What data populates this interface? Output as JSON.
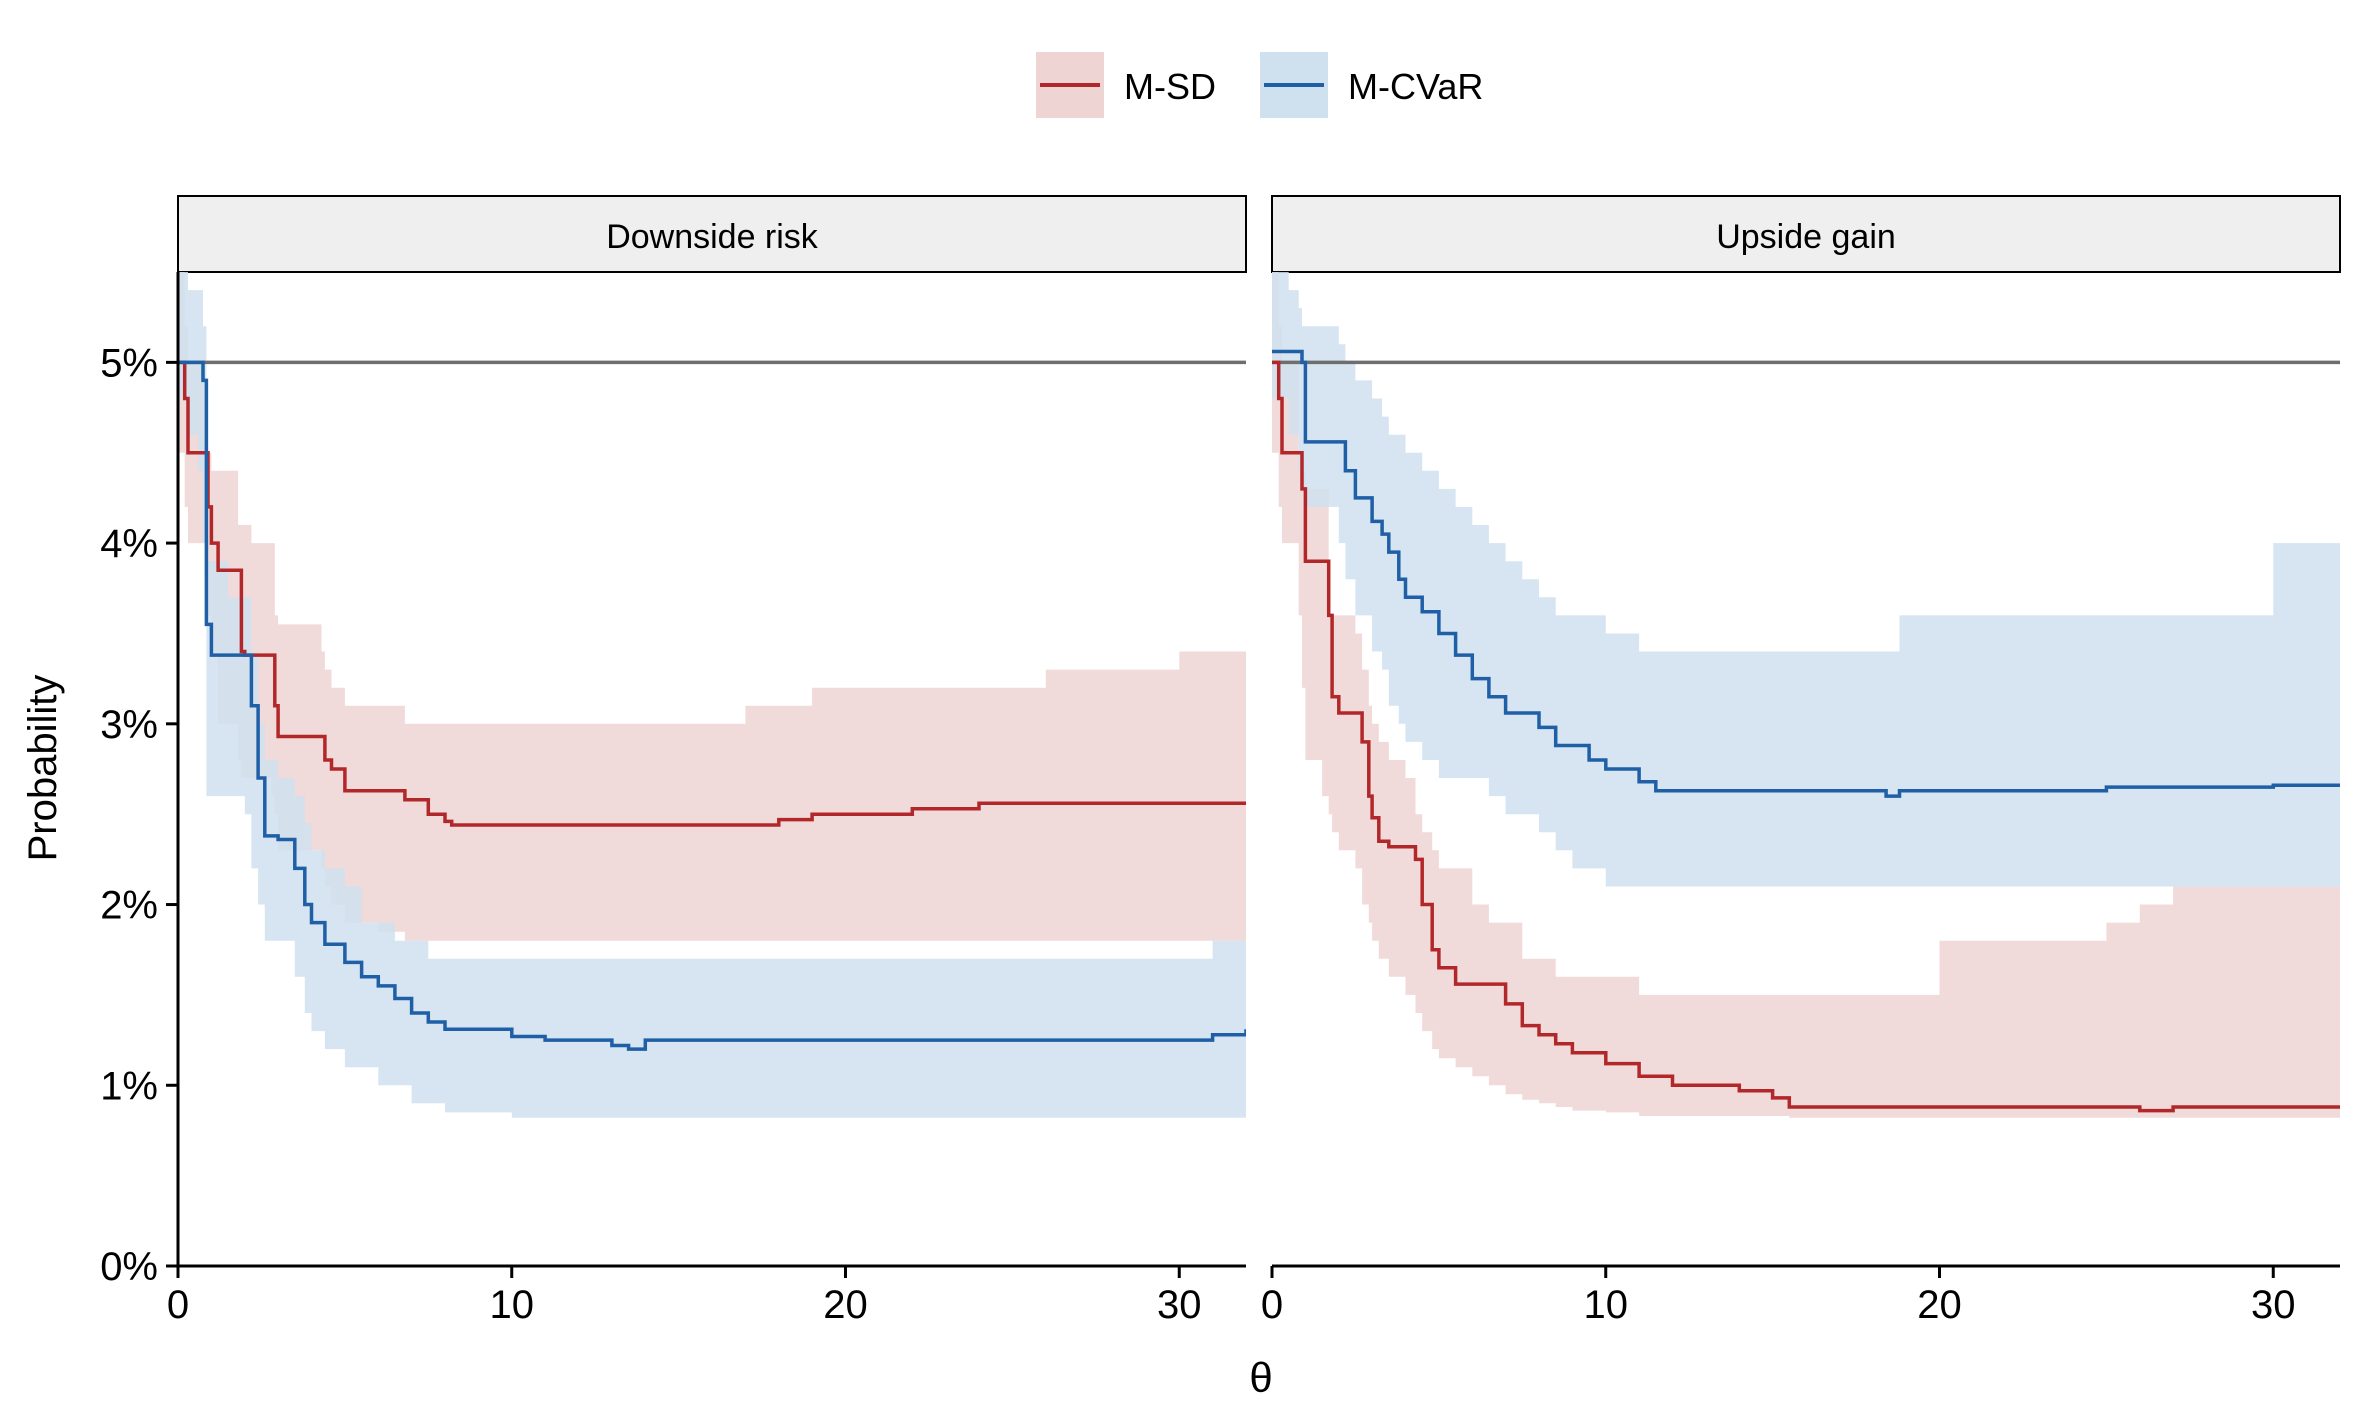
{
  "chart_data": {
    "type": "line",
    "xlabel": "θ",
    "ylabel": "Probability",
    "xlim": [
      0,
      32
    ],
    "ylim": [
      0,
      0.055
    ],
    "x_ticks": [
      0,
      10,
      20,
      30
    ],
    "x_tick_labels": [
      "0",
      "10",
      "20",
      "30"
    ],
    "y_ticks": [
      0,
      0.01,
      0.02,
      0.03,
      0.04,
      0.05
    ],
    "y_tick_labels": [
      "0%",
      "1%",
      "2%",
      "3%",
      "4%",
      "5%"
    ],
    "reference_line": {
      "y": 0.05,
      "color": "#6e6e6e"
    },
    "legend": {
      "position": "top",
      "items": [
        {
          "label": "M-SD",
          "color": "#b2282a",
          "fill": "#efd4d4"
        },
        {
          "label": "M-CVaR",
          "color": "#1f5fa6",
          "fill": "#cfe0ee"
        }
      ]
    },
    "panels": [
      {
        "title": "Downside risk",
        "series": [
          {
            "name": "M-SD",
            "color": "#b2282a",
            "fill": "#efd4d4",
            "x": [
              0,
              0.2,
              0.3,
              0.8,
              0.9,
              1.0,
              1.2,
              1.8,
              1.9,
              2.0,
              2.2,
              2.8,
              2.9,
              3.0,
              3.5,
              4.3,
              4.4,
              4.6,
              5.0,
              5.5,
              6.0,
              6.8,
              7.5,
              8.0,
              8.2,
              8.4,
              10,
              15,
              17,
              18,
              19,
              20,
              21,
              22,
              24,
              26,
              28,
              30,
              32
            ],
            "y": [
              0.05,
              0.048,
              0.045,
              0.045,
              0.042,
              0.04,
              0.0385,
              0.0385,
              0.034,
              0.0338,
              0.0338,
              0.0338,
              0.031,
              0.0293,
              0.0293,
              0.0293,
              0.028,
              0.0275,
              0.0263,
              0.0263,
              0.0263,
              0.0258,
              0.025,
              0.0246,
              0.0244,
              0.0244,
              0.0244,
              0.0244,
              0.0244,
              0.0247,
              0.025,
              0.025,
              0.025,
              0.0253,
              0.0256,
              0.0256,
              0.0256,
              0.0256,
              0.0256
            ],
            "lower": [
              0.045,
              0.042,
              0.04,
              0.038,
              0.036,
              0.034,
              0.03,
              0.028,
              0.027,
              0.027,
              0.027,
              0.026,
              0.025,
              0.023,
              0.023,
              0.022,
              0.021,
              0.02,
              0.019,
              0.019,
              0.0185,
              0.018,
              0.018,
              0.018,
              0.018,
              0.018,
              0.018,
              0.018,
              0.018,
              0.018,
              0.018,
              0.018,
              0.018,
              0.018,
              0.018,
              0.018,
              0.018,
              0.018,
              0.018
            ],
            "upper": [
              0.055,
              0.052,
              0.05,
              0.045,
              0.045,
              0.044,
              0.044,
              0.041,
              0.041,
              0.041,
              0.04,
              0.04,
              0.036,
              0.0355,
              0.0355,
              0.034,
              0.033,
              0.032,
              0.031,
              0.031,
              0.031,
              0.03,
              0.03,
              0.03,
              0.03,
              0.03,
              0.03,
              0.03,
              0.031,
              0.031,
              0.032,
              0.032,
              0.032,
              0.032,
              0.032,
              0.033,
              0.033,
              0.034,
              0.034
            ]
          },
          {
            "name": "M-CVaR",
            "color": "#1f5fa6",
            "fill": "#cfe0ee",
            "x": [
              0,
              0.3,
              0.6,
              0.75,
              0.85,
              1.0,
              1.5,
              2.0,
              2.2,
              2.4,
              2.6,
              3.0,
              3.5,
              3.8,
              4.0,
              4.4,
              5.0,
              5.5,
              6.0,
              6.5,
              7.0,
              7.5,
              8.0,
              9.0,
              10,
              11,
              12,
              13,
              13.5,
              14,
              15,
              20,
              25,
              30,
              31,
              32
            ],
            "y": [
              0.05,
              0.05,
              0.05,
              0.049,
              0.0355,
              0.0338,
              0.0338,
              0.0338,
              0.031,
              0.027,
              0.0238,
              0.0236,
              0.022,
              0.02,
              0.019,
              0.0178,
              0.0168,
              0.016,
              0.0155,
              0.0148,
              0.014,
              0.0135,
              0.0131,
              0.0131,
              0.0127,
              0.0125,
              0.0125,
              0.0122,
              0.012,
              0.0125,
              0.0125,
              0.0125,
              0.0125,
              0.0125,
              0.0128,
              0.0131
            ],
            "lower": [
              0.048,
              0.046,
              0.044,
              0.04,
              0.026,
              0.026,
              0.026,
              0.025,
              0.022,
              0.02,
              0.018,
              0.018,
              0.016,
              0.014,
              0.013,
              0.012,
              0.011,
              0.011,
              0.01,
              0.01,
              0.009,
              0.009,
              0.0085,
              0.0085,
              0.0082,
              0.0082,
              0.0082,
              0.0082,
              0.0082,
              0.0082,
              0.0082,
              0.0082,
              0.0082,
              0.0082,
              0.0082,
              0.0082
            ],
            "upper": [
              0.055,
              0.054,
              0.054,
              0.052,
              0.039,
              0.039,
              0.037,
              0.037,
              0.034,
              0.03,
              0.028,
              0.027,
              0.026,
              0.0245,
              0.023,
              0.022,
              0.021,
              0.019,
              0.019,
              0.018,
              0.018,
              0.017,
              0.017,
              0.017,
              0.017,
              0.017,
              0.017,
              0.017,
              0.017,
              0.017,
              0.017,
              0.017,
              0.017,
              0.017,
              0.018,
              0.018
            ]
          }
        ]
      },
      {
        "title": "Upside gain",
        "series": [
          {
            "name": "M-SD",
            "color": "#b2282a",
            "fill": "#efd4d4",
            "x": [
              0,
              0.2,
              0.3,
              0.8,
              0.9,
              1.0,
              1.5,
              1.7,
              1.8,
              2.0,
              2.5,
              2.7,
              2.9,
              3.0,
              3.2,
              3.5,
              4.0,
              4.3,
              4.5,
              4.8,
              5.0,
              5.5,
              6.0,
              6.5,
              7.0,
              7.5,
              8.0,
              8.5,
              9.0,
              10,
              11,
              12,
              13,
              14,
              15,
              15.5,
              20,
              25,
              26,
              27,
              32
            ],
            "y": [
              0.05,
              0.048,
              0.045,
              0.045,
              0.043,
              0.039,
              0.039,
              0.036,
              0.0315,
              0.0306,
              0.0306,
              0.029,
              0.026,
              0.0248,
              0.0235,
              0.0232,
              0.0232,
              0.0225,
              0.02,
              0.0175,
              0.0165,
              0.0156,
              0.0156,
              0.0156,
              0.0145,
              0.0133,
              0.0128,
              0.0123,
              0.0118,
              0.0112,
              0.0105,
              0.01,
              0.01,
              0.0097,
              0.0093,
              0.0088,
              0.0088,
              0.0088,
              0.0086,
              0.0088,
              0.0088
            ],
            "lower": [
              0.045,
              0.042,
              0.04,
              0.036,
              0.032,
              0.028,
              0.026,
              0.025,
              0.024,
              0.023,
              0.022,
              0.02,
              0.019,
              0.018,
              0.017,
              0.016,
              0.015,
              0.014,
              0.013,
              0.012,
              0.0115,
              0.011,
              0.0105,
              0.01,
              0.0095,
              0.0092,
              0.009,
              0.0088,
              0.0086,
              0.0085,
              0.0083,
              0.0083,
              0.0083,
              0.0083,
              0.0083,
              0.0082,
              0.0082,
              0.0082,
              0.0082,
              0.0082,
              0.0082
            ],
            "upper": [
              0.055,
              0.052,
              0.05,
              0.045,
              0.044,
              0.043,
              0.043,
              0.036,
              0.036,
              0.036,
              0.035,
              0.033,
              0.031,
              0.03,
              0.029,
              0.028,
              0.027,
              0.025,
              0.024,
              0.023,
              0.022,
              0.022,
              0.02,
              0.019,
              0.019,
              0.017,
              0.017,
              0.016,
              0.016,
              0.016,
              0.015,
              0.015,
              0.015,
              0.015,
              0.015,
              0.015,
              0.018,
              0.019,
              0.02,
              0.021,
              0.021
            ]
          },
          {
            "name": "M-CVaR",
            "color": "#1f5fa6",
            "fill": "#cfe0ee",
            "x": [
              0,
              0.5,
              0.8,
              0.9,
              1.0,
              2.0,
              2.2,
              2.5,
              3.0,
              3.3,
              3.5,
              3.8,
              4.0,
              4.5,
              5.0,
              5.5,
              6.0,
              6.5,
              7.0,
              7.5,
              8.0,
              8.5,
              9.0,
              9.5,
              10.0,
              11.0,
              11.5,
              12,
              13,
              14,
              15,
              18,
              18.4,
              18.8,
              20,
              25,
              30,
              32
            ],
            "y": [
              0.0506,
              0.0506,
              0.0506,
              0.05,
              0.0456,
              0.0456,
              0.044,
              0.0425,
              0.0412,
              0.0405,
              0.0395,
              0.038,
              0.037,
              0.0362,
              0.035,
              0.0338,
              0.0325,
              0.0315,
              0.0306,
              0.0306,
              0.0298,
              0.0288,
              0.0288,
              0.028,
              0.0275,
              0.0268,
              0.0263,
              0.0263,
              0.0263,
              0.0263,
              0.0263,
              0.0263,
              0.026,
              0.0263,
              0.0263,
              0.0265,
              0.0266,
              0.0266
            ],
            "lower": [
              0.048,
              0.046,
              0.044,
              0.043,
              0.042,
              0.04,
              0.038,
              0.036,
              0.034,
              0.033,
              0.031,
              0.03,
              0.029,
              0.028,
              0.027,
              0.027,
              0.027,
              0.026,
              0.025,
              0.025,
              0.024,
              0.023,
              0.022,
              0.022,
              0.021,
              0.021,
              0.021,
              0.021,
              0.021,
              0.021,
              0.021,
              0.021,
              0.021,
              0.021,
              0.021,
              0.021,
              0.021,
              0.021
            ],
            "upper": [
              0.055,
              0.054,
              0.053,
              0.052,
              0.052,
              0.051,
              0.05,
              0.049,
              0.048,
              0.047,
              0.046,
              0.046,
              0.045,
              0.044,
              0.043,
              0.042,
              0.041,
              0.04,
              0.039,
              0.038,
              0.037,
              0.036,
              0.036,
              0.036,
              0.035,
              0.034,
              0.034,
              0.034,
              0.034,
              0.034,
              0.034,
              0.034,
              0.034,
              0.036,
              0.036,
              0.036,
              0.04,
              0.04
            ]
          }
        ]
      }
    ]
  }
}
